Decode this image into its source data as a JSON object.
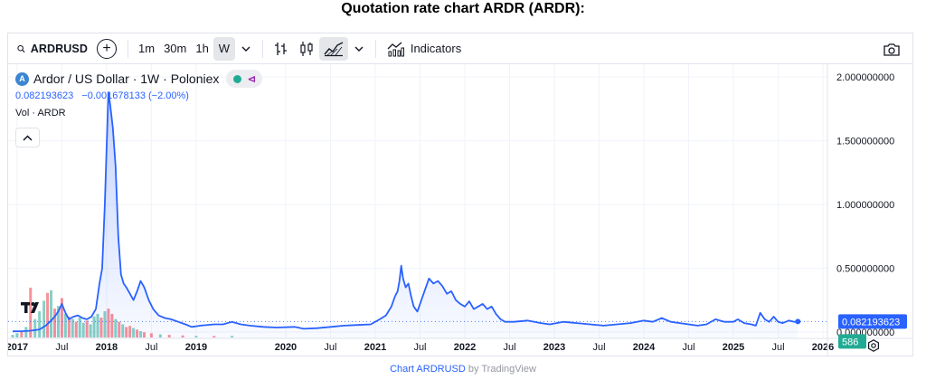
{
  "page_title": "Quotation rate chart ARDR (ARDR):",
  "toolbar": {
    "symbol": "ARDRUSD",
    "intervals": [
      "1m",
      "30m",
      "1h",
      "W"
    ],
    "active_interval": "W",
    "indicators_label": "Indicators"
  },
  "legend": {
    "title": "Ardor / US Dollar · 1W · Poloniex",
    "logo_letter": "A",
    "last_value": "0.082193623",
    "change": "−0.001678133 (−2.00%)",
    "volume_label": "Vol · ARDR"
  },
  "price_badge": "0.082193623",
  "volume_badge": "586",
  "footer": {
    "link": "Chart ARDRUSD",
    "suffix": "by TradingView"
  },
  "colors": {
    "line": "#2962ff",
    "up": "#22ab94",
    "down": "#f23645",
    "grid": "#f0f3fa"
  },
  "chart_data": {
    "type": "area",
    "title": "Ardor / US Dollar · 1W · Poloniex",
    "y_axis_ticks": [
      "2.000000000",
      "1.500000000",
      "1.000000000",
      "0.500000000",
      "0.000000000"
    ],
    "ylim": [
      -0.05,
      2.1
    ],
    "xlim": [
      2016.9,
      2026.05
    ],
    "x_ticks": [
      {
        "label": "2017",
        "x": 2017.0,
        "bold": true
      },
      {
        "label": "Jul",
        "x": 2017.5,
        "bold": false
      },
      {
        "label": "2018",
        "x": 2018.0,
        "bold": true
      },
      {
        "label": "Jul",
        "x": 2018.5,
        "bold": false
      },
      {
        "label": "2019",
        "x": 2019.0,
        "bold": true
      },
      {
        "label": "2020",
        "x": 2020.0,
        "bold": true
      },
      {
        "label": "Jul",
        "x": 2020.5,
        "bold": false
      },
      {
        "label": "2021",
        "x": 2021.0,
        "bold": true
      },
      {
        "label": "Jul",
        "x": 2021.5,
        "bold": false
      },
      {
        "label": "2022",
        "x": 2022.0,
        "bold": true
      },
      {
        "label": "Jul",
        "x": 2022.5,
        "bold": false
      },
      {
        "label": "2023",
        "x": 2023.0,
        "bold": true
      },
      {
        "label": "Jul",
        "x": 2023.5,
        "bold": false
      },
      {
        "label": "2024",
        "x": 2024.0,
        "bold": true
      },
      {
        "label": "Jul",
        "x": 2024.5,
        "bold": false
      },
      {
        "label": "2025",
        "x": 2025.0,
        "bold": true
      },
      {
        "label": "Jul",
        "x": 2025.5,
        "bold": false
      },
      {
        "label": "2026",
        "x": 2026.0,
        "bold": true
      }
    ],
    "series": [
      {
        "name": "ARDRUSD",
        "points": [
          [
            2016.95,
            0.005
          ],
          [
            2017.05,
            0.006
          ],
          [
            2017.15,
            0.01
          ],
          [
            2017.25,
            0.02
          ],
          [
            2017.32,
            0.05
          ],
          [
            2017.38,
            0.09
          ],
          [
            2017.42,
            0.12
          ],
          [
            2017.46,
            0.16
          ],
          [
            2017.5,
            0.22
          ],
          [
            2017.54,
            0.15
          ],
          [
            2017.58,
            0.1
          ],
          [
            2017.63,
            0.12
          ],
          [
            2017.68,
            0.13
          ],
          [
            2017.73,
            0.11
          ],
          [
            2017.78,
            0.1
          ],
          [
            2017.83,
            0.12
          ],
          [
            2017.88,
            0.18
          ],
          [
            2017.92,
            0.38
          ],
          [
            2017.95,
            0.5
          ],
          [
            2017.98,
            1.0
          ],
          [
            2018.0,
            1.45
          ],
          [
            2018.02,
            1.88
          ],
          [
            2018.04,
            1.78
          ],
          [
            2018.07,
            1.6
          ],
          [
            2018.1,
            1.3
          ],
          [
            2018.13,
            0.75
          ],
          [
            2018.16,
            0.45
          ],
          [
            2018.19,
            0.38
          ],
          [
            2018.22,
            0.35
          ],
          [
            2018.26,
            0.3
          ],
          [
            2018.3,
            0.25
          ],
          [
            2018.34,
            0.32
          ],
          [
            2018.38,
            0.4
          ],
          [
            2018.42,
            0.35
          ],
          [
            2018.47,
            0.25
          ],
          [
            2018.52,
            0.18
          ],
          [
            2018.58,
            0.13
          ],
          [
            2018.65,
            0.11
          ],
          [
            2018.72,
            0.1
          ],
          [
            2018.8,
            0.08
          ],
          [
            2018.88,
            0.06
          ],
          [
            2018.95,
            0.04
          ],
          [
            2019.05,
            0.05
          ],
          [
            2019.2,
            0.06
          ],
          [
            2019.3,
            0.06
          ],
          [
            2019.4,
            0.08
          ],
          [
            2019.5,
            0.06
          ],
          [
            2019.6,
            0.05
          ],
          [
            2019.75,
            0.04
          ],
          [
            2019.9,
            0.035
          ],
          [
            2020.1,
            0.04
          ],
          [
            2020.2,
            0.025
          ],
          [
            2020.35,
            0.03
          ],
          [
            2020.5,
            0.04
          ],
          [
            2020.65,
            0.05
          ],
          [
            2020.8,
            0.055
          ],
          [
            2020.95,
            0.06
          ],
          [
            2021.05,
            0.1
          ],
          [
            2021.12,
            0.13
          ],
          [
            2021.18,
            0.2
          ],
          [
            2021.22,
            0.28
          ],
          [
            2021.25,
            0.32
          ],
          [
            2021.27,
            0.4
          ],
          [
            2021.29,
            0.52
          ],
          [
            2021.31,
            0.42
          ],
          [
            2021.34,
            0.35
          ],
          [
            2021.37,
            0.38
          ],
          [
            2021.4,
            0.28
          ],
          [
            2021.43,
            0.2
          ],
          [
            2021.47,
            0.16
          ],
          [
            2021.5,
            0.22
          ],
          [
            2021.55,
            0.32
          ],
          [
            2021.6,
            0.42
          ],
          [
            2021.65,
            0.38
          ],
          [
            2021.7,
            0.4
          ],
          [
            2021.75,
            0.36
          ],
          [
            2021.8,
            0.3
          ],
          [
            2021.85,
            0.32
          ],
          [
            2021.9,
            0.25
          ],
          [
            2021.95,
            0.22
          ],
          [
            2022.0,
            0.2
          ],
          [
            2022.05,
            0.24
          ],
          [
            2022.1,
            0.18
          ],
          [
            2022.15,
            0.2
          ],
          [
            2022.2,
            0.22
          ],
          [
            2022.25,
            0.18
          ],
          [
            2022.3,
            0.2
          ],
          [
            2022.35,
            0.14
          ],
          [
            2022.4,
            0.1
          ],
          [
            2022.45,
            0.08
          ],
          [
            2022.55,
            0.08
          ],
          [
            2022.7,
            0.09
          ],
          [
            2022.85,
            0.07
          ],
          [
            2022.95,
            0.06
          ],
          [
            2023.1,
            0.08
          ],
          [
            2023.25,
            0.07
          ],
          [
            2023.4,
            0.06
          ],
          [
            2023.55,
            0.05
          ],
          [
            2023.7,
            0.06
          ],
          [
            2023.85,
            0.07
          ],
          [
            2024.0,
            0.09
          ],
          [
            2024.1,
            0.08
          ],
          [
            2024.2,
            0.11
          ],
          [
            2024.3,
            0.08
          ],
          [
            2024.4,
            0.07
          ],
          [
            2024.5,
            0.06
          ],
          [
            2024.6,
            0.05
          ],
          [
            2024.7,
            0.06
          ],
          [
            2024.8,
            0.1
          ],
          [
            2024.9,
            0.08
          ],
          [
            2025.0,
            0.08
          ],
          [
            2025.05,
            0.1
          ],
          [
            2025.12,
            0.07
          ],
          [
            2025.2,
            0.06
          ],
          [
            2025.25,
            0.05
          ],
          [
            2025.3,
            0.15
          ],
          [
            2025.35,
            0.1
          ],
          [
            2025.4,
            0.08
          ],
          [
            2025.45,
            0.12
          ],
          [
            2025.5,
            0.08
          ],
          [
            2025.55,
            0.07
          ],
          [
            2025.62,
            0.09
          ],
          [
            2025.68,
            0.08
          ],
          [
            2025.72,
            0.082
          ]
        ]
      }
    ],
    "volume_bars": [
      [
        2016.95,
        0.05,
        "up"
      ],
      [
        2017.0,
        0.08,
        "up"
      ],
      [
        2017.05,
        0.12,
        "down"
      ],
      [
        2017.1,
        0.2,
        "up"
      ],
      [
        2017.15,
        0.95,
        "down"
      ],
      [
        2017.2,
        0.35,
        "up"
      ],
      [
        2017.25,
        0.5,
        "up"
      ],
      [
        2017.3,
        0.7,
        "up"
      ],
      [
        2017.34,
        0.85,
        "down"
      ],
      [
        2017.38,
        0.9,
        "up"
      ],
      [
        2017.42,
        0.55,
        "down"
      ],
      [
        2017.46,
        0.6,
        "up"
      ],
      [
        2017.5,
        0.75,
        "down"
      ],
      [
        2017.54,
        0.45,
        "up"
      ],
      [
        2017.58,
        0.4,
        "down"
      ],
      [
        2017.62,
        0.35,
        "up"
      ],
      [
        2017.66,
        0.3,
        "down"
      ],
      [
        2017.7,
        0.38,
        "up"
      ],
      [
        2017.74,
        0.28,
        "up"
      ],
      [
        2017.78,
        0.32,
        "down"
      ],
      [
        2017.82,
        0.25,
        "up"
      ],
      [
        2017.86,
        0.4,
        "up"
      ],
      [
        2017.9,
        0.45,
        "up"
      ],
      [
        2017.94,
        0.38,
        "down"
      ],
      [
        2017.98,
        0.5,
        "up"
      ],
      [
        2018.02,
        0.55,
        "down"
      ],
      [
        2018.06,
        0.45,
        "down"
      ],
      [
        2018.1,
        0.35,
        "up"
      ],
      [
        2018.14,
        0.3,
        "down"
      ],
      [
        2018.18,
        0.25,
        "up"
      ],
      [
        2018.22,
        0.2,
        "down"
      ],
      [
        2018.26,
        0.22,
        "down"
      ],
      [
        2018.3,
        0.18,
        "up"
      ],
      [
        2018.34,
        0.15,
        "down"
      ],
      [
        2018.38,
        0.12,
        "up"
      ],
      [
        2018.42,
        0.1,
        "down"
      ],
      [
        2018.5,
        0.08,
        "down"
      ],
      [
        2018.6,
        0.06,
        "up"
      ],
      [
        2018.7,
        0.05,
        "down"
      ],
      [
        2018.85,
        0.04,
        "down"
      ],
      [
        2019.0,
        0.03,
        "up"
      ],
      [
        2019.2,
        0.03,
        "down"
      ],
      [
        2019.4,
        0.03,
        "up"
      ]
    ]
  }
}
